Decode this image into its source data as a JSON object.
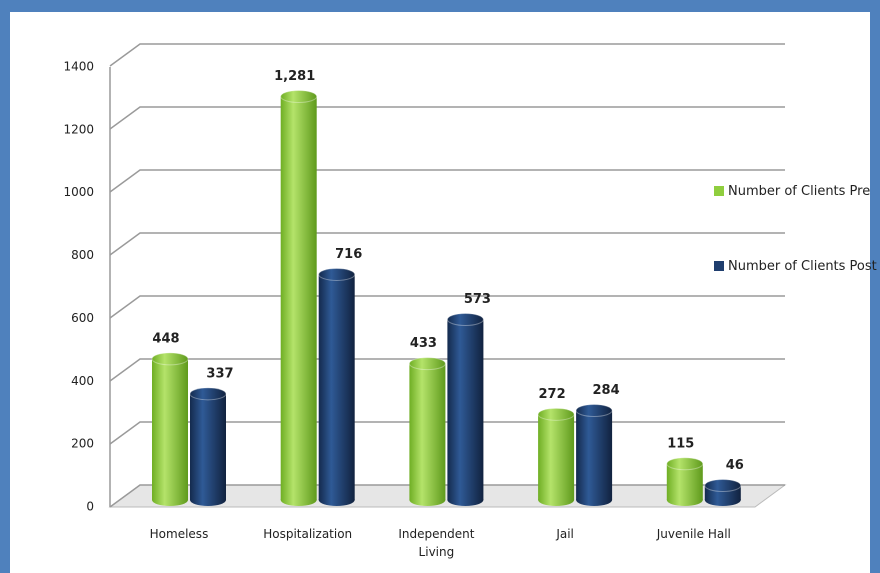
{
  "chart_data": {
    "type": "bar",
    "categories": [
      "Homeless",
      "Hospitalization",
      "Independent Living",
      "Jail",
      "Juvenile Hall"
    ],
    "series": [
      {
        "name": "Number of Clients Pre",
        "color": "#8fce3e",
        "values": [
          448,
          1281,
          433,
          272,
          115
        ],
        "value_labels": [
          "448",
          "1,281",
          "433",
          "272",
          "115"
        ]
      },
      {
        "name": "Number of Clients Post",
        "color": "#1f3e6e",
        "values": [
          337,
          716,
          573,
          284,
          46
        ],
        "value_labels": [
          "337",
          "716",
          "573",
          "284",
          "46"
        ]
      }
    ],
    "ylim": [
      0,
      1400
    ],
    "yticks": [
      0,
      200,
      400,
      600,
      800,
      1000,
      1200,
      1400
    ],
    "grid": true,
    "legend": "right"
  }
}
